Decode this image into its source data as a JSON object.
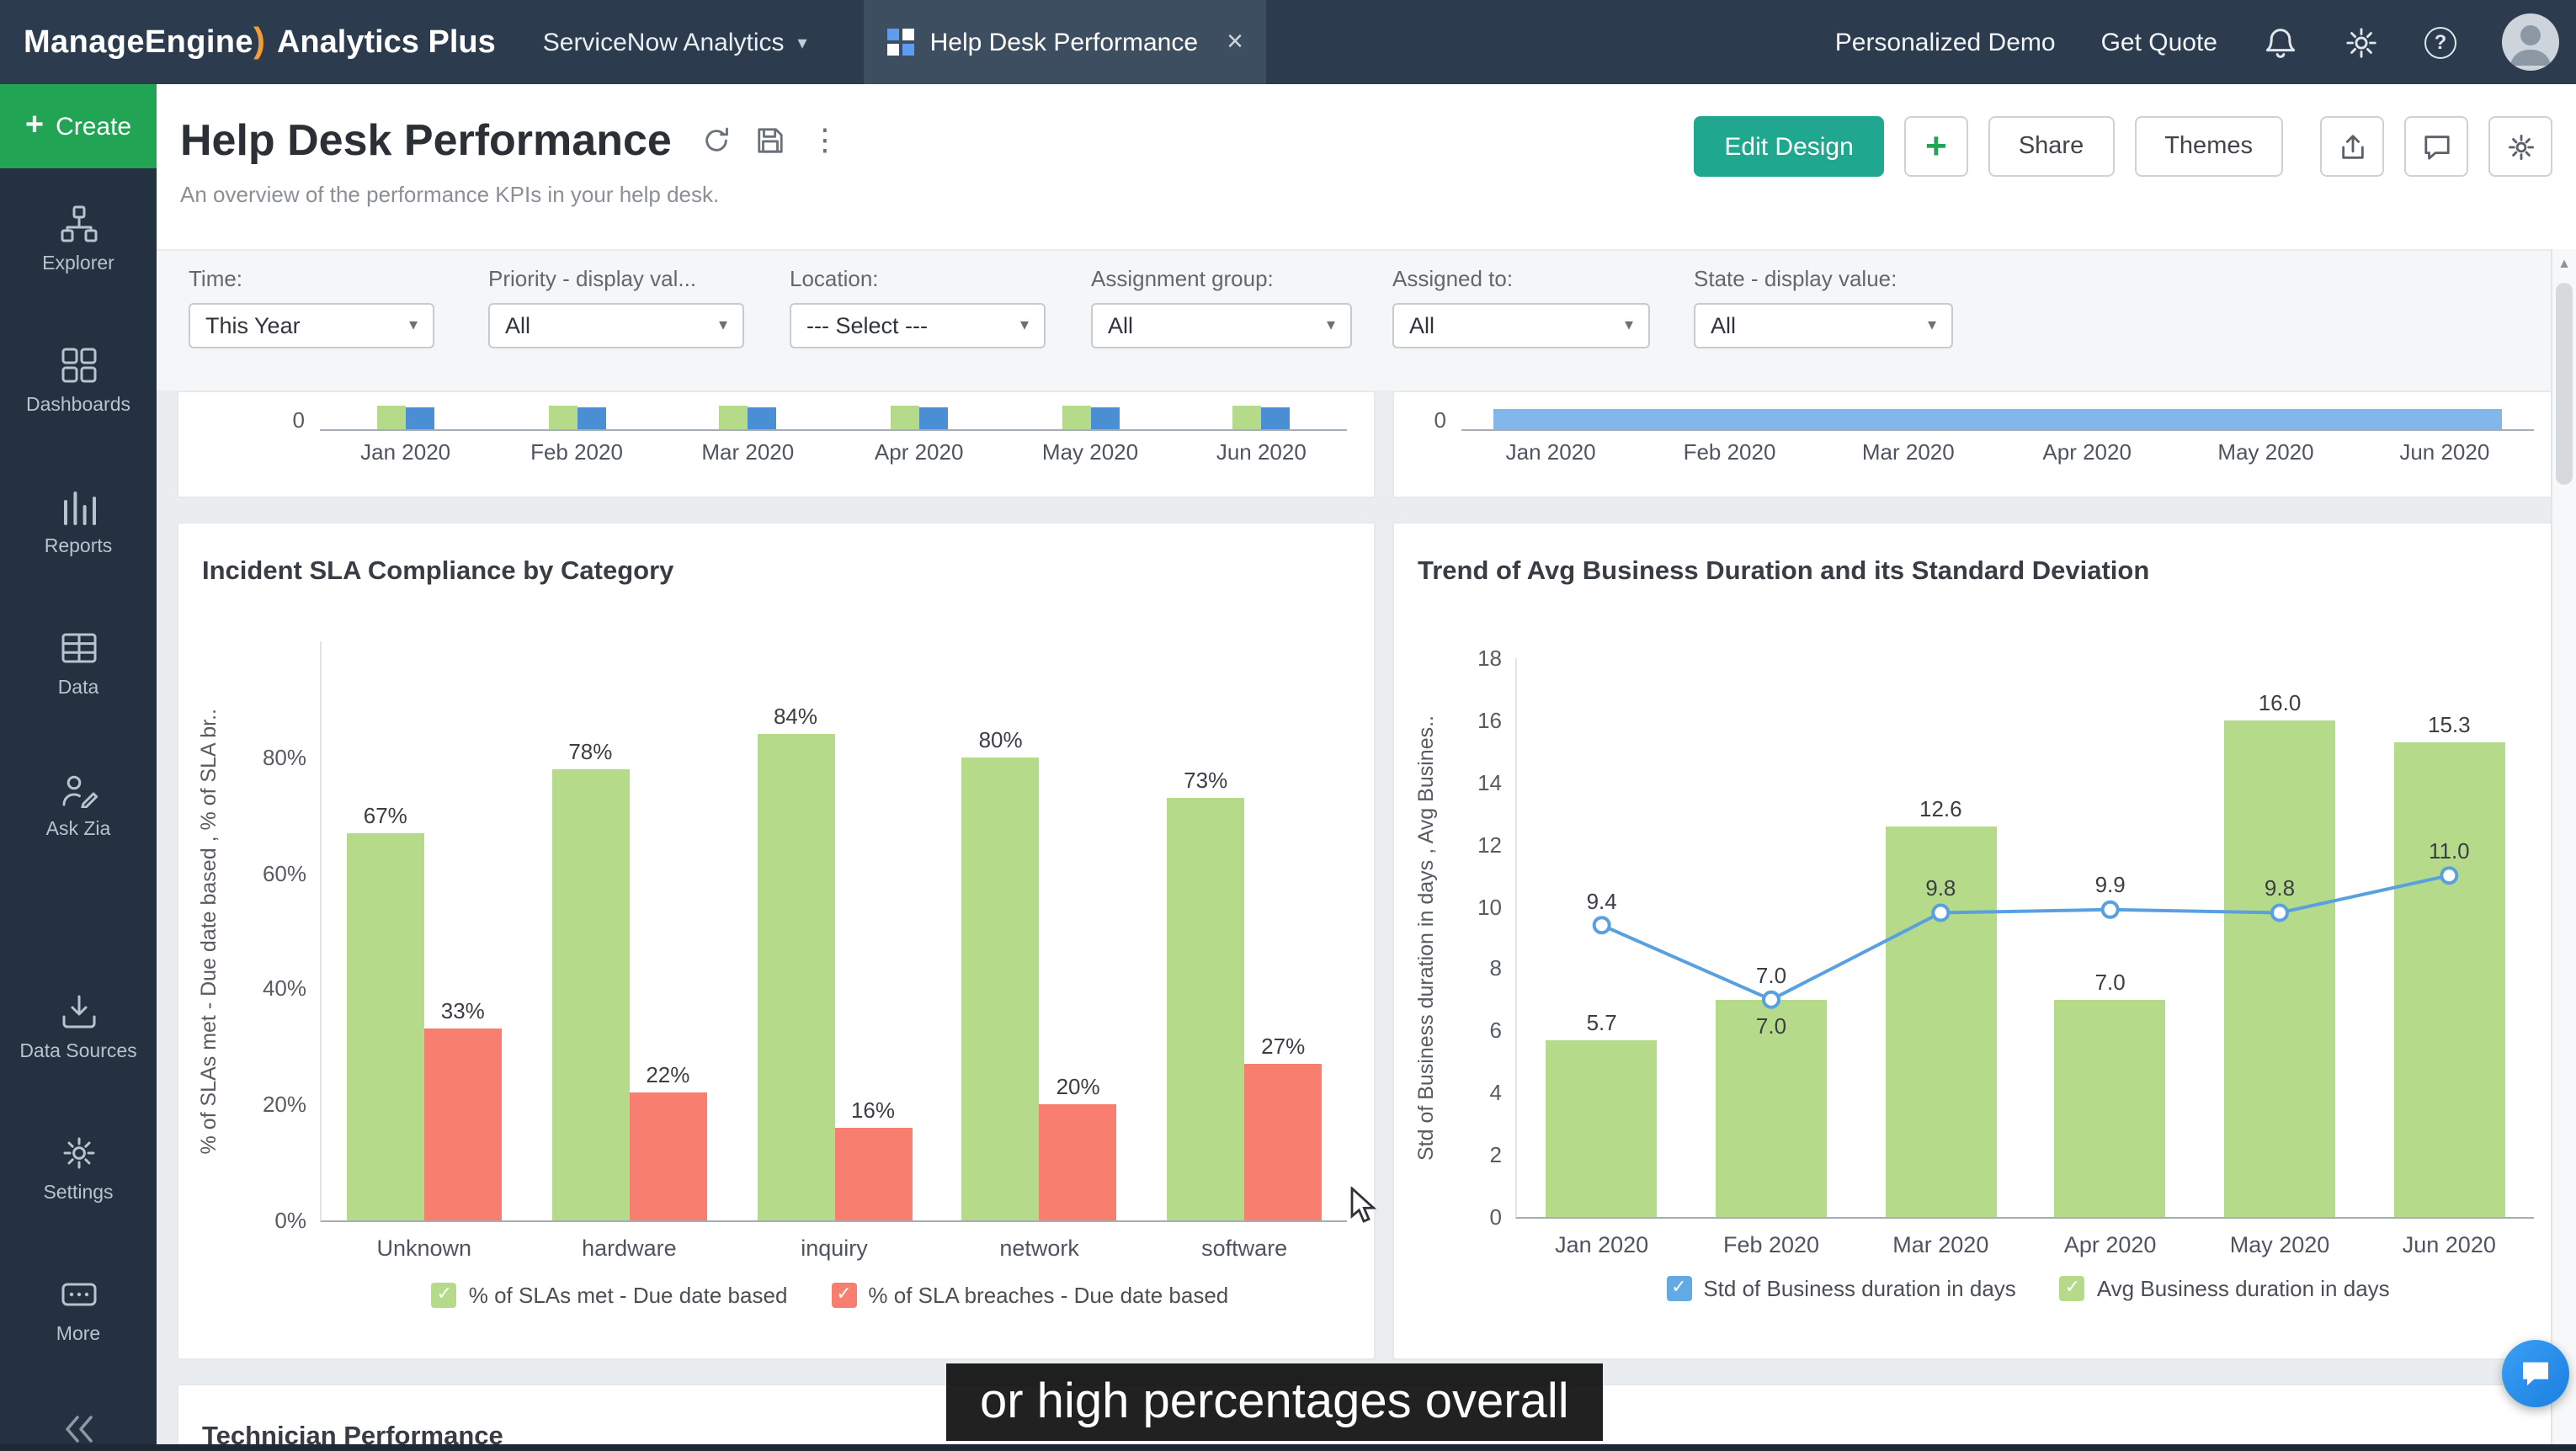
{
  "topbar": {
    "brand_manage": "ManageEngine",
    "brand_swoosh": ")",
    "brand_product": "Analytics Plus",
    "workspace": "ServiceNow Analytics",
    "tab_title": "Help Desk Performance",
    "personalized_demo": "Personalized Demo",
    "get_quote": "Get Quote"
  },
  "sidebar": {
    "create_label": "Create",
    "items": [
      {
        "label": "Explorer"
      },
      {
        "label": "Dashboards"
      },
      {
        "label": "Reports"
      },
      {
        "label": "Data"
      },
      {
        "label": "Ask Zia"
      },
      {
        "label": "Data Sources"
      },
      {
        "label": "Settings"
      },
      {
        "label": "More"
      }
    ]
  },
  "header": {
    "title": "Help Desk Performance",
    "subtitle": "An overview of the performance KPIs in your help desk.",
    "edit_design": "Edit Design",
    "add": "+",
    "share": "Share",
    "themes": "Themes"
  },
  "filters": [
    {
      "label": "Time:",
      "value": "This Year"
    },
    {
      "label": "Priority - display val...",
      "value": "All"
    },
    {
      "label": "Location:",
      "value": "--- Select ---"
    },
    {
      "label": "Assignment group:",
      "value": "All"
    },
    {
      "label": "Assigned to:",
      "value": "All"
    },
    {
      "label": "State - display value:",
      "value": "All"
    }
  ],
  "months": [
    "Jan 2020",
    "Feb 2020",
    "Mar 2020",
    "Apr 2020",
    "May 2020",
    "Jun 2020"
  ],
  "partial_charts": {
    "left": {
      "zero_label": "0",
      "bar_colors": [
        "#b5db8a",
        "#4a8fd3"
      ]
    },
    "right": {
      "zero_label": "0",
      "bar_color": "#83b7eb"
    }
  },
  "chart_data": [
    {
      "type": "bar",
      "title": "Incident SLA Compliance by Category",
      "ylabel": "% of SLAs met - Due date based , % of SLA br..",
      "categories": [
        "Unknown",
        "hardware",
        "inquiry",
        "network",
        "software"
      ],
      "yticks": [
        "0%",
        "20%",
        "40%",
        "60%",
        "80%"
      ],
      "ylim": [
        0,
        100
      ],
      "grid": false,
      "legend_position": "bottom",
      "series": [
        {
          "name": "% of SLAs met - Due date based",
          "kind": "bar",
          "color": "#b5db8a",
          "values": [
            67,
            78,
            84,
            80,
            73
          ],
          "labels": [
            "67%",
            "78%",
            "84%",
            "80%",
            "73%"
          ]
        },
        {
          "name": "% of SLA breaches - Due date based",
          "kind": "bar",
          "color": "#f87e70",
          "values": [
            33,
            22,
            16,
            20,
            27
          ],
          "labels": [
            "33%",
            "22%",
            "16%",
            "20%",
            "27%"
          ]
        }
      ],
      "legend": [
        {
          "label": "% of SLAs met - Due date based",
          "color": "#b5db8a"
        },
        {
          "label": "% of SLA breaches - Due date based",
          "color": "#f87e70"
        }
      ]
    },
    {
      "type": "bar",
      "title": "Trend of Avg Business Duration and its Standard Deviation",
      "ylabel": "Std of Business duration in days , Avg Busines..",
      "categories": [
        "Jan 2020",
        "Feb 2020",
        "Mar 2020",
        "Apr 2020",
        "May 2020",
        "Jun 2020"
      ],
      "yticks": [
        "0",
        "2",
        "4",
        "6",
        "8",
        "10",
        "12",
        "14",
        "16",
        "18"
      ],
      "ylim": [
        0,
        18
      ],
      "grid": false,
      "legend_position": "bottom",
      "series": [
        {
          "name": "Avg Business duration in days",
          "kind": "bar",
          "color": "#b5db8a",
          "values": [
            5.7,
            7.0,
            12.6,
            7.0,
            16.0,
            15.3
          ],
          "labels": [
            "5.7",
            "7.0",
            "12.6",
            "7.0",
            "16.0",
            "15.3"
          ]
        },
        {
          "name": "Std of Business duration in days",
          "kind": "line",
          "color": "#58a0e0",
          "values": [
            9.4,
            7.0,
            9.8,
            9.9,
            9.8,
            11.0
          ],
          "labels": [
            "9.4",
            "7.0",
            "9.8",
            "9.9",
            "9.8",
            "11.0"
          ]
        }
      ],
      "legend": [
        {
          "label": "Std of Business duration in days",
          "color": "#63a9e3"
        },
        {
          "label": "Avg Business duration in days",
          "color": "#b5db8a"
        }
      ]
    }
  ],
  "technician_title": "Technician Performance",
  "caption": "or high percentages overall",
  "icons": {
    "caret_down": "▾",
    "close": "×",
    "kebab": "⋮",
    "help": "?",
    "scroll_up": "▲",
    "check": "✓"
  },
  "colors": {
    "topbar": "#2c3b4d",
    "sidebar": "#233140",
    "create_green": "#21a454",
    "edit_design_teal": "#1fa78f",
    "bar_green": "#b5db8a",
    "bar_red": "#f87e70",
    "line_blue": "#58a0e0",
    "wide_bar_blue": "#83b7eb",
    "small_bar_blue": "#4a8fd3"
  }
}
